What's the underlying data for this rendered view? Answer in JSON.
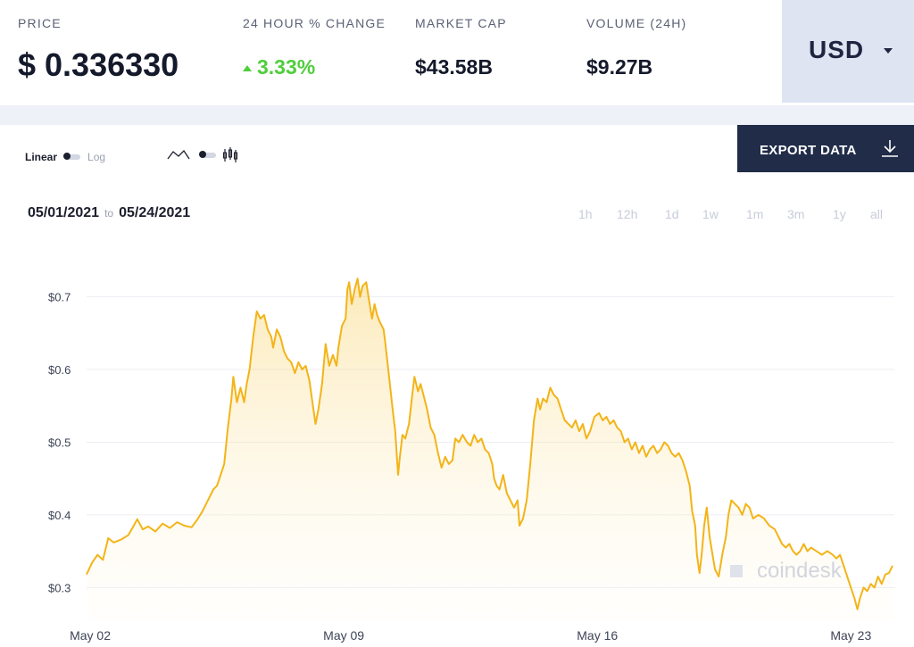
{
  "stats": {
    "price_label": "PRICE",
    "price_value": "$ 0.336330",
    "change_label": "24 HOUR % CHANGE",
    "change_value": "3.33%",
    "mcap_label": "MARKET CAP",
    "mcap_value": "$43.58B",
    "volume_label": "VOLUME (24H)",
    "volume_value": "$9.27B"
  },
  "currency": {
    "selected": "USD"
  },
  "controls": {
    "scale_linear": "Linear",
    "scale_log": "Log",
    "export_label": "EXPORT DATA",
    "date_from": "05/01/2021",
    "date_to_word": "to",
    "date_to": "05/24/2021",
    "periods": [
      "1h",
      "12h",
      "1d",
      "1w",
      "1m",
      "3m",
      "1y",
      "all"
    ]
  },
  "watermark": "coindesk",
  "colors": {
    "line": "#f3b418",
    "positive": "#4fce3c",
    "export_bg": "#202c48",
    "currency_bg": "#dfe4f2"
  },
  "chart_data": {
    "type": "area",
    "y_tick_labels": [
      "$0.7",
      "$0.6",
      "$0.5",
      "$0.4",
      "$0.3"
    ],
    "y_ticks": [
      0.7,
      0.6,
      0.5,
      0.4,
      0.3
    ],
    "x_tick_labels": [
      "May 02",
      "May 09",
      "May 16",
      "May 23"
    ],
    "x_ticks": [
      2,
      9,
      16,
      23
    ],
    "xlim": [
      1.9,
      24.2
    ],
    "ylim": [
      0.255,
      0.74
    ],
    "grid": true,
    "x_unit": "day of May 2021",
    "series": [
      {
        "values": [
          [
            1.9,
            0.318
          ],
          [
            2.05,
            0.334
          ],
          [
            2.2,
            0.345
          ],
          [
            2.35,
            0.338
          ],
          [
            2.5,
            0.368
          ],
          [
            2.65,
            0.362
          ],
          [
            2.85,
            0.366
          ],
          [
            3.05,
            0.372
          ],
          [
            3.2,
            0.385
          ],
          [
            3.3,
            0.394
          ],
          [
            3.45,
            0.38
          ],
          [
            3.6,
            0.384
          ],
          [
            3.8,
            0.377
          ],
          [
            4.0,
            0.388
          ],
          [
            4.2,
            0.382
          ],
          [
            4.4,
            0.39
          ],
          [
            4.6,
            0.385
          ],
          [
            4.8,
            0.383
          ],
          [
            4.95,
            0.393
          ],
          [
            5.1,
            0.405
          ],
          [
            5.25,
            0.42
          ],
          [
            5.4,
            0.435
          ],
          [
            5.5,
            0.44
          ],
          [
            5.6,
            0.455
          ],
          [
            5.7,
            0.47
          ],
          [
            5.8,
            0.52
          ],
          [
            5.9,
            0.56
          ],
          [
            5.95,
            0.59
          ],
          [
            6.05,
            0.555
          ],
          [
            6.15,
            0.575
          ],
          [
            6.25,
            0.555
          ],
          [
            6.32,
            0.58
          ],
          [
            6.4,
            0.6
          ],
          [
            6.5,
            0.645
          ],
          [
            6.6,
            0.68
          ],
          [
            6.7,
            0.67
          ],
          [
            6.8,
            0.675
          ],
          [
            6.9,
            0.655
          ],
          [
            7.0,
            0.645
          ],
          [
            7.05,
            0.63
          ],
          [
            7.15,
            0.655
          ],
          [
            7.25,
            0.645
          ],
          [
            7.35,
            0.625
          ],
          [
            7.45,
            0.615
          ],
          [
            7.55,
            0.61
          ],
          [
            7.65,
            0.595
          ],
          [
            7.75,
            0.61
          ],
          [
            7.85,
            0.6
          ],
          [
            7.95,
            0.605
          ],
          [
            8.05,
            0.585
          ],
          [
            8.15,
            0.55
          ],
          [
            8.22,
            0.525
          ],
          [
            8.3,
            0.545
          ],
          [
            8.4,
            0.58
          ],
          [
            8.5,
            0.635
          ],
          [
            8.6,
            0.605
          ],
          [
            8.7,
            0.62
          ],
          [
            8.8,
            0.605
          ],
          [
            8.85,
            0.63
          ],
          [
            8.95,
            0.66
          ],
          [
            9.05,
            0.67
          ],
          [
            9.1,
            0.71
          ],
          [
            9.15,
            0.72
          ],
          [
            9.22,
            0.69
          ],
          [
            9.3,
            0.71
          ],
          [
            9.38,
            0.725
          ],
          [
            9.45,
            0.7
          ],
          [
            9.52,
            0.715
          ],
          [
            9.62,
            0.72
          ],
          [
            9.7,
            0.695
          ],
          [
            9.78,
            0.67
          ],
          [
            9.85,
            0.69
          ],
          [
            9.92,
            0.675
          ],
          [
            10.0,
            0.665
          ],
          [
            10.1,
            0.655
          ],
          [
            10.15,
            0.635
          ],
          [
            10.25,
            0.59
          ],
          [
            10.35,
            0.545
          ],
          [
            10.42,
            0.515
          ],
          [
            10.5,
            0.455
          ],
          [
            10.55,
            0.48
          ],
          [
            10.62,
            0.51
          ],
          [
            10.7,
            0.505
          ],
          [
            10.8,
            0.525
          ],
          [
            10.88,
            0.56
          ],
          [
            10.95,
            0.59
          ],
          [
            11.05,
            0.57
          ],
          [
            11.12,
            0.58
          ],
          [
            11.2,
            0.565
          ],
          [
            11.3,
            0.545
          ],
          [
            11.4,
            0.52
          ],
          [
            11.5,
            0.51
          ],
          [
            11.6,
            0.485
          ],
          [
            11.7,
            0.465
          ],
          [
            11.8,
            0.48
          ],
          [
            11.9,
            0.47
          ],
          [
            12.0,
            0.475
          ],
          [
            12.08,
            0.505
          ],
          [
            12.18,
            0.5
          ],
          [
            12.28,
            0.51
          ],
          [
            12.4,
            0.5
          ],
          [
            12.5,
            0.495
          ],
          [
            12.6,
            0.51
          ],
          [
            12.7,
            0.5
          ],
          [
            12.8,
            0.505
          ],
          [
            12.9,
            0.49
          ],
          [
            13.0,
            0.485
          ],
          [
            13.1,
            0.47
          ],
          [
            13.15,
            0.45
          ],
          [
            13.22,
            0.44
          ],
          [
            13.3,
            0.435
          ],
          [
            13.4,
            0.455
          ],
          [
            13.5,
            0.43
          ],
          [
            13.6,
            0.42
          ],
          [
            13.7,
            0.41
          ],
          [
            13.8,
            0.42
          ],
          [
            13.85,
            0.385
          ],
          [
            13.95,
            0.395
          ],
          [
            14.05,
            0.42
          ],
          [
            14.15,
            0.47
          ],
          [
            14.25,
            0.53
          ],
          [
            14.35,
            0.56
          ],
          [
            14.42,
            0.545
          ],
          [
            14.5,
            0.56
          ],
          [
            14.6,
            0.555
          ],
          [
            14.7,
            0.575
          ],
          [
            14.8,
            0.565
          ],
          [
            14.9,
            0.56
          ],
          [
            15.0,
            0.545
          ],
          [
            15.1,
            0.53
          ],
          [
            15.2,
            0.525
          ],
          [
            15.3,
            0.52
          ],
          [
            15.4,
            0.53
          ],
          [
            15.5,
            0.515
          ],
          [
            15.6,
            0.525
          ],
          [
            15.7,
            0.505
          ],
          [
            15.8,
            0.515
          ],
          [
            15.92,
            0.535
          ],
          [
            16.05,
            0.54
          ],
          [
            16.15,
            0.53
          ],
          [
            16.25,
            0.535
          ],
          [
            16.35,
            0.525
          ],
          [
            16.45,
            0.53
          ],
          [
            16.55,
            0.52
          ],
          [
            16.65,
            0.515
          ],
          [
            16.75,
            0.5
          ],
          [
            16.85,
            0.505
          ],
          [
            16.95,
            0.49
          ],
          [
            17.05,
            0.5
          ],
          [
            17.15,
            0.485
          ],
          [
            17.25,
            0.495
          ],
          [
            17.35,
            0.48
          ],
          [
            17.45,
            0.49
          ],
          [
            17.55,
            0.495
          ],
          [
            17.65,
            0.485
          ],
          [
            17.75,
            0.49
          ],
          [
            17.85,
            0.5
          ],
          [
            17.95,
            0.495
          ],
          [
            18.05,
            0.485
          ],
          [
            18.15,
            0.48
          ],
          [
            18.25,
            0.485
          ],
          [
            18.35,
            0.475
          ],
          [
            18.45,
            0.46
          ],
          [
            18.55,
            0.44
          ],
          [
            18.62,
            0.405
          ],
          [
            18.7,
            0.385
          ],
          [
            18.75,
            0.345
          ],
          [
            18.82,
            0.32
          ],
          [
            18.88,
            0.345
          ],
          [
            18.95,
            0.385
          ],
          [
            19.02,
            0.41
          ],
          [
            19.1,
            0.37
          ],
          [
            19.18,
            0.345
          ],
          [
            19.25,
            0.325
          ],
          [
            19.35,
            0.315
          ],
          [
            19.45,
            0.345
          ],
          [
            19.55,
            0.37
          ],
          [
            19.62,
            0.4
          ],
          [
            19.7,
            0.42
          ],
          [
            19.8,
            0.415
          ],
          [
            19.9,
            0.41
          ],
          [
            20.0,
            0.4
          ],
          [
            20.1,
            0.415
          ],
          [
            20.2,
            0.41
          ],
          [
            20.3,
            0.395
          ],
          [
            20.45,
            0.4
          ],
          [
            20.6,
            0.395
          ],
          [
            20.75,
            0.385
          ],
          [
            20.9,
            0.38
          ],
          [
            21.0,
            0.37
          ],
          [
            21.1,
            0.36
          ],
          [
            21.2,
            0.355
          ],
          [
            21.3,
            0.36
          ],
          [
            21.4,
            0.35
          ],
          [
            21.5,
            0.345
          ],
          [
            21.6,
            0.35
          ],
          [
            21.7,
            0.36
          ],
          [
            21.8,
            0.35
          ],
          [
            21.9,
            0.355
          ],
          [
            22.05,
            0.35
          ],
          [
            22.2,
            0.345
          ],
          [
            22.35,
            0.35
          ],
          [
            22.5,
            0.345
          ],
          [
            22.6,
            0.34
          ],
          [
            22.7,
            0.345
          ],
          [
            22.8,
            0.33
          ],
          [
            22.9,
            0.315
          ],
          [
            23.0,
            0.3
          ],
          [
            23.1,
            0.285
          ],
          [
            23.18,
            0.27
          ],
          [
            23.25,
            0.285
          ],
          [
            23.35,
            0.3
          ],
          [
            23.45,
            0.295
          ],
          [
            23.55,
            0.305
          ],
          [
            23.65,
            0.3
          ],
          [
            23.75,
            0.315
          ],
          [
            23.85,
            0.305
          ],
          [
            23.95,
            0.318
          ],
          [
            24.05,
            0.32
          ],
          [
            24.15,
            0.33
          ]
        ]
      }
    ]
  }
}
